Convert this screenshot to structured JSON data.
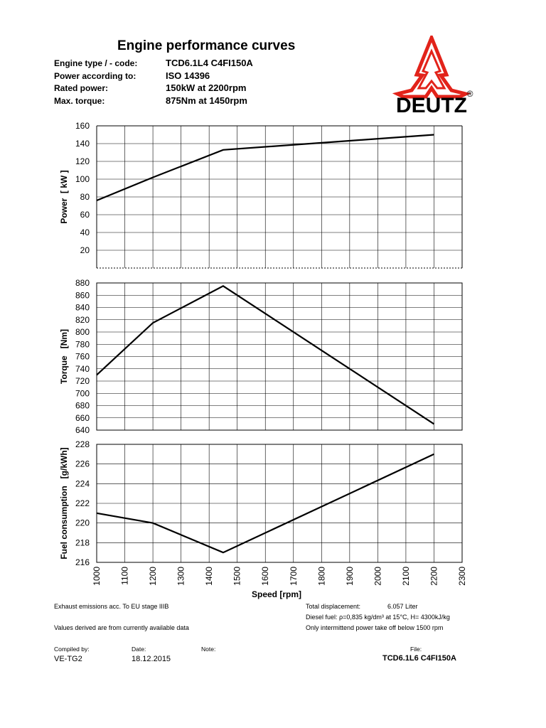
{
  "header": {
    "title": "Engine performance curves",
    "rows": [
      {
        "label": "Engine type / - code:",
        "value": "TCD6.1L4 C4FI150A"
      },
      {
        "label": "Power according to:",
        "value": "ISO 14396"
      },
      {
        "label": "Rated power:",
        "value": "150kW at 2200rpm"
      },
      {
        "label": "Max. torque:",
        "value": "875Nm at 1450rpm"
      }
    ]
  },
  "logo": {
    "text": "DEUTZ",
    "registered": "®",
    "color": "#e2231a",
    "icon": "deutz-m-logo-icon"
  },
  "chart_data": [
    {
      "type": "line",
      "ylabel": "Power  [ kW ]",
      "ylim": [
        0,
        160
      ],
      "yticks": [
        20,
        40,
        60,
        80,
        100,
        120,
        140,
        160
      ],
      "ytick_labels": [
        "20",
        "40",
        "60",
        "80",
        "100",
        "120",
        "140",
        "160"
      ],
      "xlim": [
        1000,
        2300
      ],
      "series": [
        {
          "x": [
            1000,
            1200,
            1450,
            2200
          ],
          "y": [
            76,
            102,
            133,
            150
          ]
        }
      ],
      "grid": true
    },
    {
      "type": "line",
      "ylabel": "Torque   [Nm]",
      "ylim": [
        640,
        880
      ],
      "yticks": [
        640,
        660,
        680,
        700,
        720,
        740,
        760,
        780,
        800,
        820,
        840,
        860,
        880
      ],
      "ytick_labels": [
        "640",
        "660",
        "680",
        "700",
        "720",
        "740",
        "760",
        "780",
        "800",
        "820",
        "840",
        "860",
        "880"
      ],
      "xlim": [
        1000,
        2300
      ],
      "series": [
        {
          "x": [
            1000,
            1200,
            1450,
            2200
          ],
          "y": [
            730,
            815,
            875,
            650
          ]
        }
      ],
      "grid": true
    },
    {
      "type": "line",
      "ylabel": "Fuel consumption   [g/kWh]",
      "ylim": [
        216,
        228
      ],
      "yticks": [
        216,
        218,
        220,
        222,
        224,
        226,
        228
      ],
      "ytick_labels": [
        "216",
        "218",
        "220",
        "222",
        "224",
        "226",
        "228"
      ],
      "xlim": [
        1000,
        2300
      ],
      "xticks": [
        1000,
        1100,
        1200,
        1300,
        1400,
        1500,
        1600,
        1700,
        1800,
        1900,
        2000,
        2100,
        2200,
        2300
      ],
      "xtick_labels": [
        "1000",
        "1100",
        "1200",
        "1300",
        "1400",
        "1500",
        "1600",
        "1700",
        "1800",
        "1900",
        "2000",
        "2100",
        "2200",
        "2300"
      ],
      "xlabel": "Speed [rpm]",
      "series": [
        {
          "x": [
            1000,
            1200,
            1450,
            2200
          ],
          "y": [
            221,
            220,
            217,
            227
          ]
        }
      ],
      "grid": true
    }
  ],
  "notes": {
    "emissions": "Exhaust emissions acc. To EU stage IIIB",
    "values": "Values derived are from currently available data",
    "displacement_label": "Total displacement:",
    "displacement_value": "6.057  Liter",
    "diesel": "Diesel fuel: ρ=0,835 kg/dm³ at 15°C, H= 4300kJ/kg",
    "pto": "Only intermittend power take off below 1500 rpm"
  },
  "footer": {
    "compiled_label": "Compiled by:",
    "compiled_value": "VE-TG2",
    "date_label": "Date:",
    "date_value": "18.12.2015",
    "note_label": "Note:",
    "file_label": "File:",
    "file_value": "TCD6.1L6 C4FI150A"
  }
}
